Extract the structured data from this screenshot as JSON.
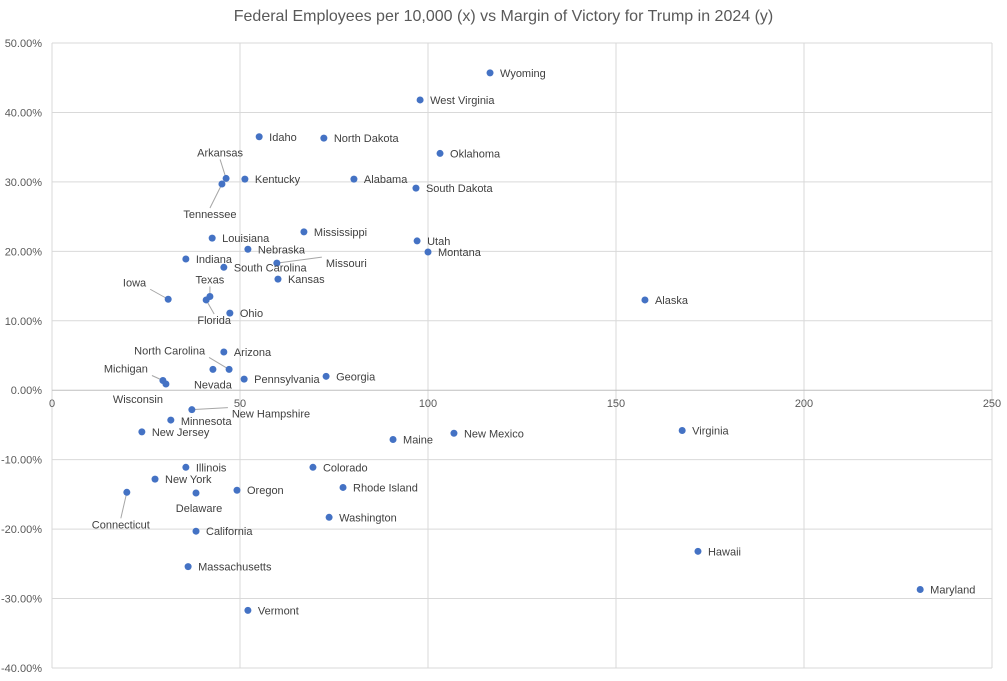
{
  "chart_data": {
    "type": "scatter",
    "title": "Federal Employees per 10,000 (x) vs Margin of Victory for Trump in 2024 (y)",
    "xlim": [
      0,
      250
    ],
    "ylim": [
      -40,
      50
    ],
    "x_ticks": [
      "0",
      "50",
      "100",
      "150",
      "200",
      "250"
    ],
    "y_ticks": [
      "50.00%",
      "40.00%",
      "30.00%",
      "20.00%",
      "10.00%",
      "0.00%",
      "-10.00%",
      "-20.00%",
      "-30.00%",
      "-40.00%"
    ],
    "grid": true,
    "legend": "none",
    "marker_color": "#4472C4",
    "points": [
      {
        "label": "Wyoming",
        "x": 116.5,
        "y": 45.7
      },
      {
        "label": "West Virginia",
        "x": 97.9,
        "y": 41.8
      },
      {
        "label": "Idaho",
        "x": 55.1,
        "y": 36.5
      },
      {
        "label": "North Dakota",
        "x": 72.3,
        "y": 36.3
      },
      {
        "label": "Oklahoma",
        "x": 103.2,
        "y": 34.1
      },
      {
        "label": "Arkansas",
        "x": 46.3,
        "y": 30.5
      },
      {
        "label": "Kentucky",
        "x": 51.3,
        "y": 30.4
      },
      {
        "label": "Alabama",
        "x": 80.3,
        "y": 30.4
      },
      {
        "label": "Tennessee",
        "x": 45.2,
        "y": 29.7
      },
      {
        "label": "South Dakota",
        "x": 96.8,
        "y": 29.1
      },
      {
        "label": "Mississippi",
        "x": 67.0,
        "y": 22.8
      },
      {
        "label": "Louisiana",
        "x": 42.6,
        "y": 21.9
      },
      {
        "label": "Utah",
        "x": 97.1,
        "y": 21.5
      },
      {
        "label": "Nebraska",
        "x": 52.1,
        "y": 20.3
      },
      {
        "label": "Montana",
        "x": 100.0,
        "y": 19.9
      },
      {
        "label": "Indiana",
        "x": 35.6,
        "y": 18.9
      },
      {
        "label": "Missouri",
        "x": 59.8,
        "y": 18.3
      },
      {
        "label": "South Carolina",
        "x": 45.7,
        "y": 17.7
      },
      {
        "label": "Kansas",
        "x": 60.1,
        "y": 16.0
      },
      {
        "label": "Iowa",
        "x": 30.9,
        "y": 13.1
      },
      {
        "label": "Texas",
        "x": 42.0,
        "y": 13.5
      },
      {
        "label": "Florida",
        "x": 41.0,
        "y": 13.0
      },
      {
        "label": "Alaska",
        "x": 157.7,
        "y": 13.0
      },
      {
        "label": "Ohio",
        "x": 47.3,
        "y": 11.1
      },
      {
        "label": "Arizona",
        "x": 45.7,
        "y": 5.5
      },
      {
        "label": "North Carolina",
        "x": 47.1,
        "y": 3.0
      },
      {
        "label": "Nevada",
        "x": 42.8,
        "y": 3.0
      },
      {
        "label": "Georgia",
        "x": 72.9,
        "y": 2.0
      },
      {
        "label": "Pennsylvania",
        "x": 51.1,
        "y": 1.6
      },
      {
        "label": "Michigan",
        "x": 29.5,
        "y": 1.4
      },
      {
        "label": "Wisconsin",
        "x": 30.3,
        "y": 0.9
      },
      {
        "label": "New Hampshire",
        "x": 37.2,
        "y": -2.8
      },
      {
        "label": "Minnesota",
        "x": 31.6,
        "y": -4.3
      },
      {
        "label": "New Jersey",
        "x": 23.9,
        "y": -6.0
      },
      {
        "label": "Maine",
        "x": 90.7,
        "y": -7.1
      },
      {
        "label": "New Mexico",
        "x": 106.9,
        "y": -6.2
      },
      {
        "label": "Virginia",
        "x": 167.6,
        "y": -5.8
      },
      {
        "label": "Illinois",
        "x": 35.6,
        "y": -11.1
      },
      {
        "label": "Colorado",
        "x": 69.4,
        "y": -11.1
      },
      {
        "label": "New York",
        "x": 27.4,
        "y": -12.8
      },
      {
        "label": "Rhode Island",
        "x": 77.4,
        "y": -14.0
      },
      {
        "label": "Connecticut",
        "x": 19.9,
        "y": -14.7
      },
      {
        "label": "Delaware",
        "x": 38.3,
        "y": -14.8
      },
      {
        "label": "Oregon",
        "x": 49.2,
        "y": -14.4
      },
      {
        "label": "Washington",
        "x": 73.7,
        "y": -18.3
      },
      {
        "label": "California",
        "x": 38.3,
        "y": -20.3
      },
      {
        "label": "Hawaii",
        "x": 171.8,
        "y": -23.2
      },
      {
        "label": "Massachusetts",
        "x": 36.2,
        "y": -25.4
      },
      {
        "label": "Maryland",
        "x": 230.9,
        "y": -28.7
      },
      {
        "label": "Vermont",
        "x": 52.1,
        "y": -31.7
      }
    ]
  }
}
